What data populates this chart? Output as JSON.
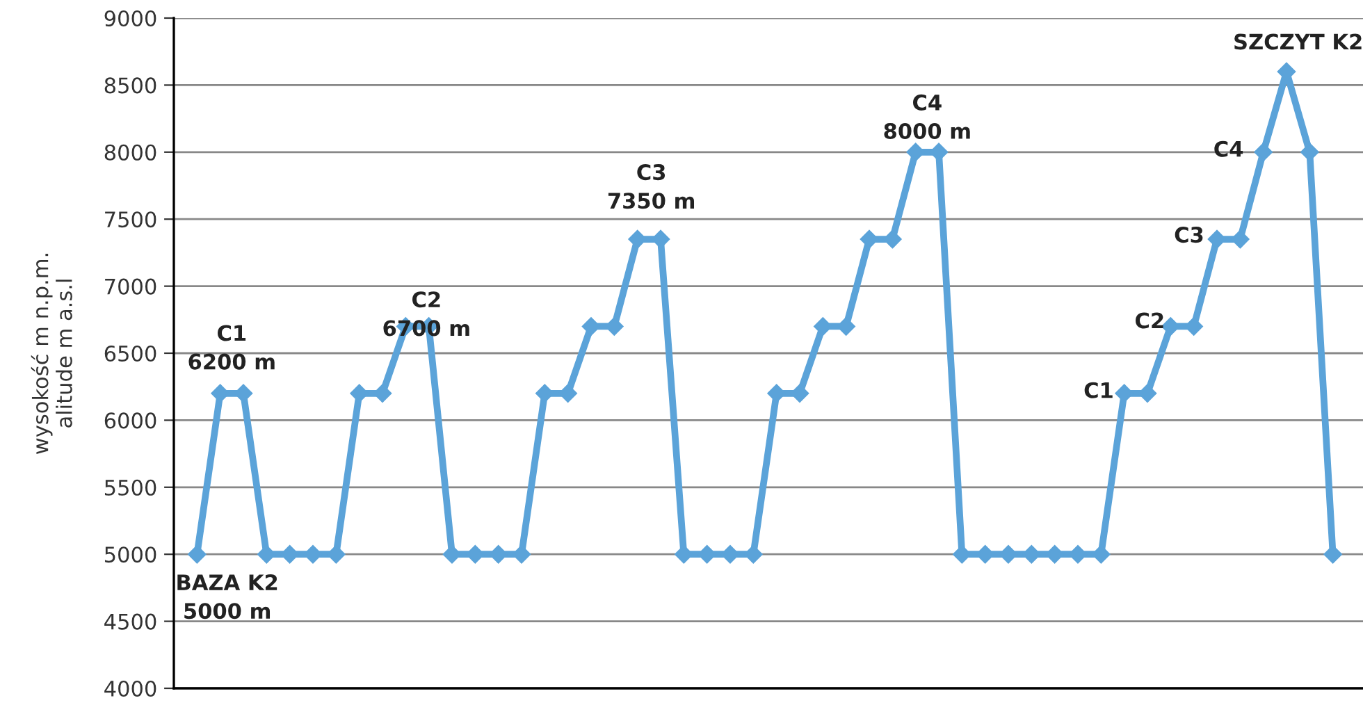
{
  "chart_data": {
    "type": "line",
    "ylabel": "wysokość m n.p.m.\nalitude m a.s.l",
    "categories": [
      null,
      null,
      null,
      null,
      null,
      null,
      null,
      null,
      null,
      null,
      null,
      null,
      null,
      null,
      null,
      null,
      null,
      null,
      null,
      null,
      null,
      null,
      null,
      null,
      null,
      null,
      null,
      null,
      null,
      null,
      null,
      null,
      null,
      null,
      null,
      null,
      null,
      null,
      null,
      null,
      null,
      null,
      null,
      null,
      null,
      null,
      null,
      null,
      null,
      null
    ],
    "series": [
      {
        "color": "#5ba3d9",
        "values": [
          5000,
          6200,
          6200,
          5000,
          5000,
          5000,
          5000,
          6200,
          6200,
          6700,
          6700,
          5000,
          5000,
          5000,
          5000,
          6200,
          6200,
          6700,
          6700,
          7350,
          7350,
          5000,
          5000,
          5000,
          5000,
          6200,
          6200,
          6700,
          6700,
          7350,
          7350,
          8000,
          8000,
          5000,
          5000,
          5000,
          5000,
          5000,
          5000,
          5000,
          6200,
          6200,
          6700,
          6700,
          7350,
          7350,
          8000,
          8600,
          8000,
          5000
        ]
      }
    ],
    "ylim": [
      4000,
      9000
    ],
    "yticks": [
      4000,
      4500,
      5000,
      5500,
      6000,
      6500,
      7000,
      7500,
      8000,
      8500,
      9000
    ],
    "tick_labels": "y",
    "grid": "y",
    "marker": "diamond",
    "line_style": "solid",
    "annotations": [
      "C1\n6200 m",
      "C2\n6700 m",
      "C3\n7350 m",
      "C4\n8000 m",
      "BAZA K2\n5000 m",
      "SZCZYT K2",
      "C1",
      "C2",
      "C3",
      "C4"
    ]
  }
}
